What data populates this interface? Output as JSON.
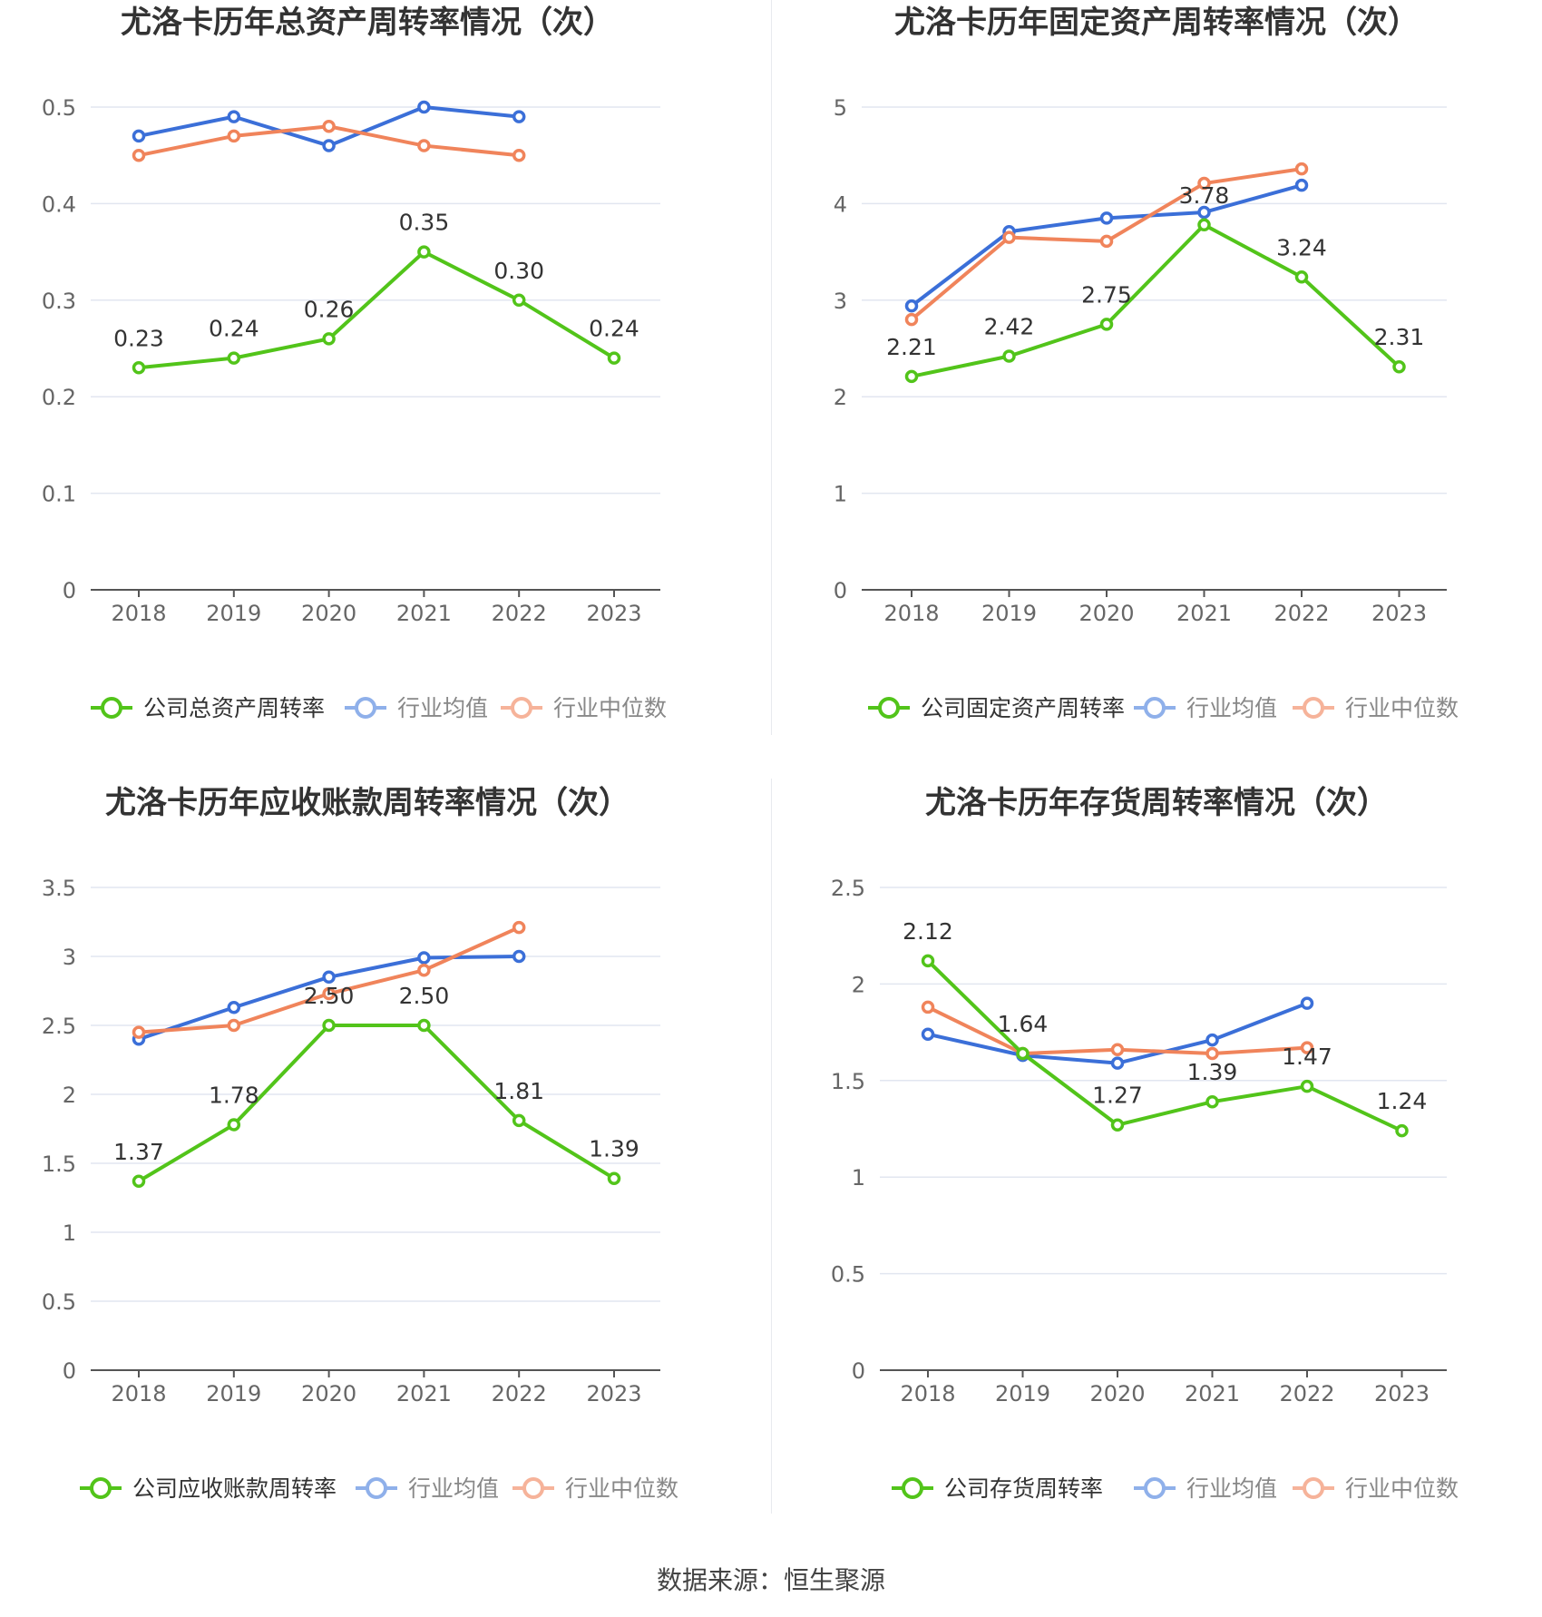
{
  "chart_data": [
    {
      "type": "line",
      "title": "尤洛卡历年总资产周转率情况（次）",
      "categories": [
        "2018",
        "2019",
        "2020",
        "2021",
        "2022",
        "2023"
      ],
      "y_ticks": [
        "0",
        "0.1",
        "0.2",
        "0.3",
        "0.4",
        "0.5"
      ],
      "ylim": [
        0,
        0.5
      ],
      "series": [
        {
          "name": "公司总资产周转率",
          "color": "#52c41a",
          "values": [
            0.23,
            0.24,
            0.26,
            0.35,
            0.3,
            0.24
          ],
          "labels": [
            "0.23",
            "0.24",
            "0.26",
            "0.35",
            "0.30",
            "0.24"
          ]
        },
        {
          "name": "行业均值",
          "color": "#3b6fd8",
          "values": [
            0.47,
            0.49,
            0.46,
            0.5,
            0.49,
            null
          ]
        },
        {
          "name": "行业中位数",
          "color": "#f0845b",
          "values": [
            0.45,
            0.47,
            0.48,
            0.46,
            0.45,
            null
          ]
        }
      ]
    },
    {
      "type": "line",
      "title": "尤洛卡历年固定资产周转率情况（次）",
      "categories": [
        "2018",
        "2019",
        "2020",
        "2021",
        "2022",
        "2023"
      ],
      "y_ticks": [
        "0",
        "1",
        "2",
        "3",
        "4",
        "5"
      ],
      "ylim": [
        0,
        5
      ],
      "series": [
        {
          "name": "公司固定资产周转率",
          "color": "#52c41a",
          "values": [
            2.21,
            2.42,
            2.75,
            3.78,
            3.24,
            2.31
          ],
          "labels": [
            "2.21",
            "2.42",
            "2.75",
            "3.78",
            "3.24",
            "2.31"
          ]
        },
        {
          "name": "行业均值",
          "color": "#3b6fd8",
          "values": [
            2.94,
            3.71,
            3.85,
            3.91,
            4.19,
            null
          ]
        },
        {
          "name": "行业中位数",
          "color": "#f0845b",
          "values": [
            2.8,
            3.65,
            3.61,
            4.21,
            4.36,
            null
          ]
        }
      ]
    },
    {
      "type": "line",
      "title": "尤洛卡历年应收账款周转率情况（次）",
      "categories": [
        "2018",
        "2019",
        "2020",
        "2021",
        "2022",
        "2023"
      ],
      "y_ticks": [
        "0",
        "0.5",
        "1",
        "1.5",
        "2",
        "2.5",
        "3",
        "3.5"
      ],
      "ylim": [
        0,
        3.5
      ],
      "series": [
        {
          "name": "公司应收账款周转率",
          "color": "#52c41a",
          "values": [
            1.37,
            1.78,
            2.5,
            2.5,
            1.81,
            1.39
          ],
          "labels": [
            "1.37",
            "1.78",
            "2.50",
            "2.50",
            "1.81",
            "1.39"
          ]
        },
        {
          "name": "行业均值",
          "color": "#3b6fd8",
          "values": [
            2.4,
            2.63,
            2.85,
            2.99,
            3.0,
            null
          ]
        },
        {
          "name": "行业中位数",
          "color": "#f0845b",
          "values": [
            2.45,
            2.5,
            2.73,
            2.9,
            3.21,
            null
          ]
        }
      ]
    },
    {
      "type": "line",
      "title": "尤洛卡历年存货周转率情况（次）",
      "categories": [
        "2018",
        "2019",
        "2020",
        "2021",
        "2022",
        "2023"
      ],
      "y_ticks": [
        "0",
        "0.5",
        "1",
        "1.5",
        "2",
        "2.5"
      ],
      "ylim": [
        0,
        2.5
      ],
      "series": [
        {
          "name": "公司存货周转率",
          "color": "#52c41a",
          "values": [
            2.12,
            1.64,
            1.27,
            1.39,
            1.47,
            1.24
          ],
          "labels": [
            "2.12",
            "1.64",
            "1.27",
            "1.39",
            "1.47",
            "1.24"
          ]
        },
        {
          "name": "行业均值",
          "color": "#3b6fd8",
          "values": [
            1.74,
            1.63,
            1.59,
            1.71,
            1.9,
            null
          ]
        },
        {
          "name": "行业中位数",
          "color": "#f0845b",
          "values": [
            1.88,
            1.64,
            1.66,
            1.64,
            1.67,
            null
          ]
        }
      ]
    }
  ],
  "source": "数据来源：恒生聚源"
}
